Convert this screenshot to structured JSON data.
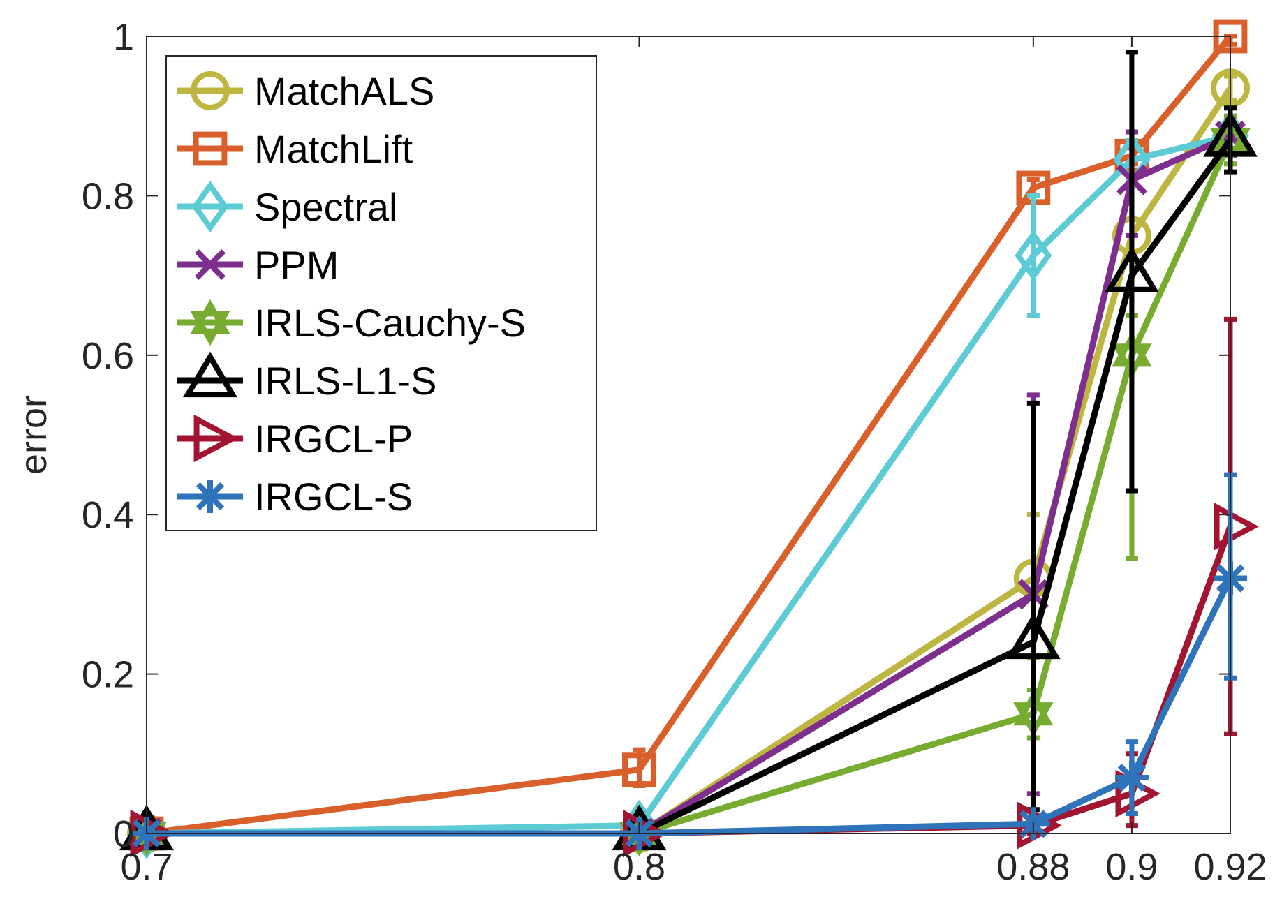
{
  "chart_data": {
    "type": "line",
    "title": "",
    "xlabel": "",
    "ylabel": "error",
    "xlim": [
      0.7,
      0.92
    ],
    "ylim": [
      0,
      1
    ],
    "x": [
      0.7,
      0.8,
      0.88,
      0.9,
      0.92
    ],
    "xticks": [
      "0.7",
      "0.8",
      "0.88",
      "0.9",
      "0.92"
    ],
    "yticks": [
      "0",
      "0.2",
      "0.4",
      "0.6",
      "0.8",
      "1"
    ],
    "grid": false,
    "legend_position": "top-left",
    "series": [
      {
        "name": "MatchALS",
        "color": "#BDB640",
        "marker": "circle",
        "values": [
          0.0,
          0.0,
          0.32,
          0.75,
          0.935
        ],
        "err_low": [
          0.0,
          0.0,
          0.22,
          0.61,
          0.92
        ],
        "err_high": [
          0.0,
          0.0,
          0.4,
          0.88,
          0.95
        ]
      },
      {
        "name": "MatchLift",
        "color": "#D95F2B",
        "marker": "square",
        "values": [
          0.0,
          0.08,
          0.81,
          0.85,
          1.0
        ],
        "err_low": [
          0.0,
          0.06,
          0.8,
          0.84,
          0.99
        ],
        "err_high": [
          0.0,
          0.105,
          0.82,
          0.86,
          1.0
        ]
      },
      {
        "name": "Spectral",
        "color": "#5CCBD6",
        "marker": "diamond",
        "values": [
          0.0,
          0.01,
          0.725,
          0.845,
          0.875
        ],
        "err_low": [
          0.0,
          0.005,
          0.65,
          0.82,
          0.85
        ],
        "err_high": [
          0.0,
          0.015,
          0.8,
          0.87,
          0.9
        ]
      },
      {
        "name": "PPM",
        "color": "#7E2F8E",
        "marker": "x",
        "values": [
          0.0,
          0.0,
          0.3,
          0.82,
          0.875
        ],
        "err_low": [
          0.0,
          0.0,
          0.05,
          0.75,
          0.85
        ],
        "err_high": [
          0.0,
          0.0,
          0.55,
          0.88,
          0.9
        ]
      },
      {
        "name": "IRLS-Cauchy-S",
        "color": "#77AC30",
        "marker": "hexagram",
        "values": [
          0.0,
          0.0,
          0.15,
          0.6,
          0.87
        ],
        "err_low": [
          0.0,
          0.0,
          0.12,
          0.345,
          0.84
        ],
        "err_high": [
          0.0,
          0.0,
          0.18,
          0.65,
          0.9
        ]
      },
      {
        "name": "IRLS-L1-S",
        "color": "#000000",
        "marker": "triangle-up",
        "values": [
          0.0,
          0.0,
          0.24,
          0.7,
          0.87
        ],
        "err_low": [
          0.0,
          0.0,
          0.03,
          0.43,
          0.83
        ],
        "err_high": [
          0.0,
          0.0,
          0.54,
          0.98,
          0.91
        ]
      },
      {
        "name": "IRGCL-P",
        "color": "#A2142F",
        "marker": "triangle-right",
        "values": [
          0.0,
          0.0,
          0.01,
          0.05,
          0.385
        ],
        "err_low": [
          0.0,
          0.0,
          0.0,
          0.01,
          0.125
        ],
        "err_high": [
          0.0,
          0.0,
          0.02,
          0.1,
          0.645
        ]
      },
      {
        "name": "IRGCL-S",
        "color": "#2F73BB",
        "marker": "asterisk",
        "values": [
          0.0,
          0.0,
          0.012,
          0.07,
          0.32
        ],
        "err_low": [
          0.0,
          0.0,
          0.008,
          0.025,
          0.195
        ],
        "err_high": [
          0.0,
          0.0,
          0.02,
          0.115,
          0.45
        ]
      }
    ]
  }
}
